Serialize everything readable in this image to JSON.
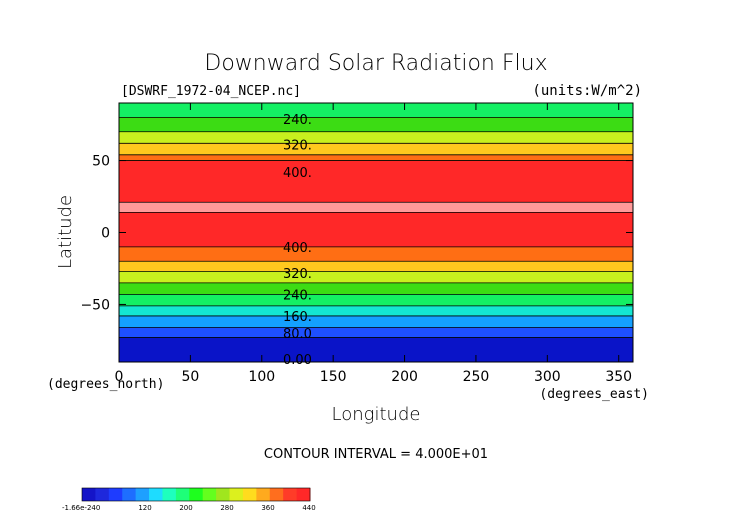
{
  "chart_data": {
    "type": "heatmap",
    "title": "Downward Solar Radiation Flux",
    "file_label": "[DSWRF_1972-04_NCEP.nc]",
    "units_label": "(units:W/m^2)",
    "xlabel": "Longitude",
    "ylabel": "Latitude",
    "x_unit_label": "(degrees_east)",
    "y_unit_label": "(degrees_north)",
    "xlim": [
      0,
      360
    ],
    "ylim": [
      -90,
      90
    ],
    "x_ticks": [
      0,
      50,
      100,
      150,
      200,
      250,
      300,
      350
    ],
    "y_ticks": [
      50,
      0,
      -50
    ],
    "contour_interval_text": "CONTOUR INTERVAL = 4.000E+01",
    "bands": [
      {
        "lat_from": 90,
        "lat_to": 80,
        "value": 200
      },
      {
        "lat_from": 80,
        "lat_to": 70,
        "value": 240
      },
      {
        "lat_from": 70,
        "lat_to": 62,
        "value": 280
      },
      {
        "lat_from": 62,
        "lat_to": 54,
        "value": 320
      },
      {
        "lat_from": 54,
        "lat_to": 50,
        "value": 360
      },
      {
        "lat_from": 50,
        "lat_to": 21,
        "value": 400
      },
      {
        "lat_from": 21,
        "lat_to": 14,
        "value": 440
      },
      {
        "lat_from": 14,
        "lat_to": -10,
        "value": 400
      },
      {
        "lat_from": -10,
        "lat_to": -20,
        "value": 360
      },
      {
        "lat_from": -20,
        "lat_to": -27,
        "value": 320
      },
      {
        "lat_from": -27,
        "lat_to": -35,
        "value": 280
      },
      {
        "lat_from": -35,
        "lat_to": -43,
        "value": 240
      },
      {
        "lat_from": -43,
        "lat_to": -51,
        "value": 200
      },
      {
        "lat_from": -51,
        "lat_to": -58,
        "value": 160
      },
      {
        "lat_from": -58,
        "lat_to": -66,
        "value": 120
      },
      {
        "lat_from": -66,
        "lat_to": -73,
        "value": 80
      },
      {
        "lat_from": -73,
        "lat_to": -90,
        "value": 0
      }
    ],
    "contour_labels": [
      {
        "lat": 79,
        "text": "240."
      },
      {
        "lat": 61,
        "text": "320."
      },
      {
        "lat": 42,
        "text": "400."
      },
      {
        "lat": -10,
        "text": "400."
      },
      {
        "lat": -28,
        "text": "320."
      },
      {
        "lat": -43,
        "text": "240."
      },
      {
        "lat": -58,
        "text": "160."
      },
      {
        "lat": -70,
        "text": "80.0"
      },
      {
        "lat": -88,
        "text": "0.00"
      }
    ],
    "colorbar": {
      "tick_labels": [
        "-1.66e-240",
        "120",
        "200",
        "280",
        "360",
        "440"
      ],
      "colors": [
        "#1414c8",
        "#1e28dc",
        "#1e3cff",
        "#1e6eff",
        "#1ea0ff",
        "#1edcff",
        "#1effbe",
        "#1eff78",
        "#1eff1e",
        "#64ff1e",
        "#a0e61e",
        "#dcf01e",
        "#ffdc1e",
        "#ffaa1e",
        "#ff6e1e",
        "#ff3c28",
        "#ff2828"
      ]
    }
  },
  "colors": {
    "v0": "#0a14c8",
    "v80": "#1e50ff",
    "v120": "#14a0ff",
    "v160": "#14e6d2",
    "v200": "#14f064",
    "v240": "#3cdc14",
    "v280": "#c8f01e",
    "v320": "#ffc81e",
    "v360": "#ff6e14",
    "v400": "#ff2828",
    "v440": "#ff9a9a"
  }
}
